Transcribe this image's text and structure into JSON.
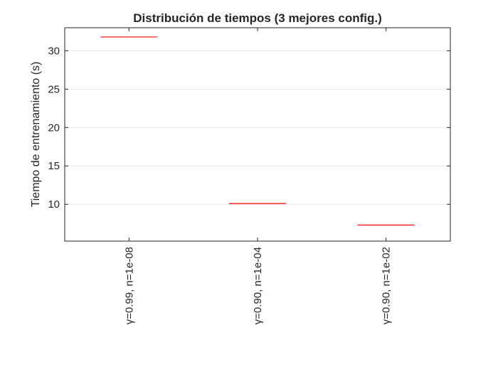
{
  "chart_data": {
    "type": "box",
    "title": "Distribución de tiempos (3 mejores config.)",
    "xlabel": "",
    "ylabel": "Tiempo de entrenamiento (s)",
    "categories": [
      "γ=0.99, n=1e-08",
      "γ=0.90, n=1e-04",
      "γ=0.90, n=1e-02"
    ],
    "values": [
      31.8,
      10.1,
      7.3
    ],
    "ylim": [
      5.2,
      33.0
    ],
    "yticks": [
      10,
      15,
      20,
      25,
      30
    ],
    "grid": true,
    "median_color": "#ff0000",
    "grid_color": "#e6e6e6",
    "axis_color": "#262626"
  }
}
